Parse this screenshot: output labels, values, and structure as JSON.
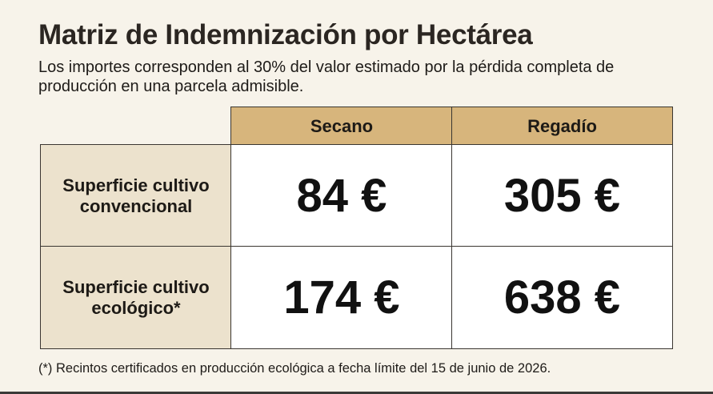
{
  "header": {
    "title": "Matriz de Indemnización por Hectárea",
    "subtitle": "Los importes corresponden al 30% del valor estimado por la pérdida completa de producción en una parcela admisible."
  },
  "table": {
    "columns": [
      "Secano",
      "Regadío"
    ],
    "rows": [
      {
        "label": "Superficie cultivo convencional",
        "cells": [
          "84 €",
          "305 €"
        ]
      },
      {
        "label": "Superficie cultivo ecológico*",
        "cells": [
          "174 €",
          "638 €"
        ]
      }
    ]
  },
  "footnote": "(*) Recintos certificados en producción ecológica a fecha límite del 15 de junio de 2026."
}
